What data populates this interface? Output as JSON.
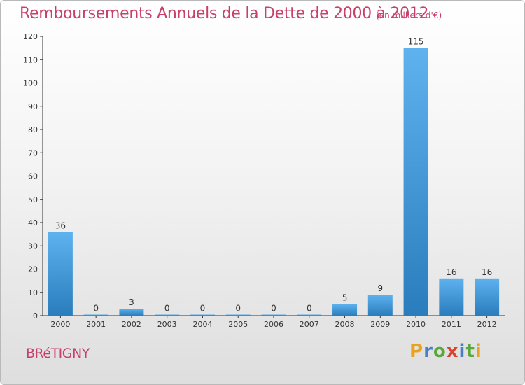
{
  "header": {
    "title": "Remboursements Annuels de la Dette de 2000 à 2012",
    "unit": "(en milliers d'€)"
  },
  "footer": {
    "city": "BRéTIGNY",
    "logo": [
      "P",
      "r",
      "o",
      "x",
      "i",
      "t",
      "i"
    ],
    "logo_colors": [
      "#e8a21c",
      "#4a7fc2",
      "#58a83a",
      "#d8452c",
      "#4a7fc2",
      "#58a83a",
      "#e8a21c"
    ]
  },
  "colors": {
    "bar_top": "#5eb2ee",
    "bar_bottom": "#2a7dbc",
    "axis": "#333333",
    "grid": "#aaaaaa"
  },
  "chart_data": {
    "type": "bar",
    "title": "Remboursements Annuels de la Dette de 2000 à 2012",
    "xlabel": "",
    "ylabel": "",
    "categories": [
      "2000",
      "2001",
      "2002",
      "2003",
      "2004",
      "2005",
      "2006",
      "2007",
      "2008",
      "2009",
      "2010",
      "2011",
      "2012"
    ],
    "values": [
      36,
      0,
      3,
      0,
      0,
      0,
      0,
      0,
      5,
      9,
      115,
      16,
      16
    ],
    "ylim": [
      0,
      120
    ],
    "yticks": [
      0,
      10,
      20,
      30,
      40,
      50,
      60,
      70,
      80,
      90,
      100,
      110,
      120
    ],
    "grid": false,
    "legend": "none"
  }
}
